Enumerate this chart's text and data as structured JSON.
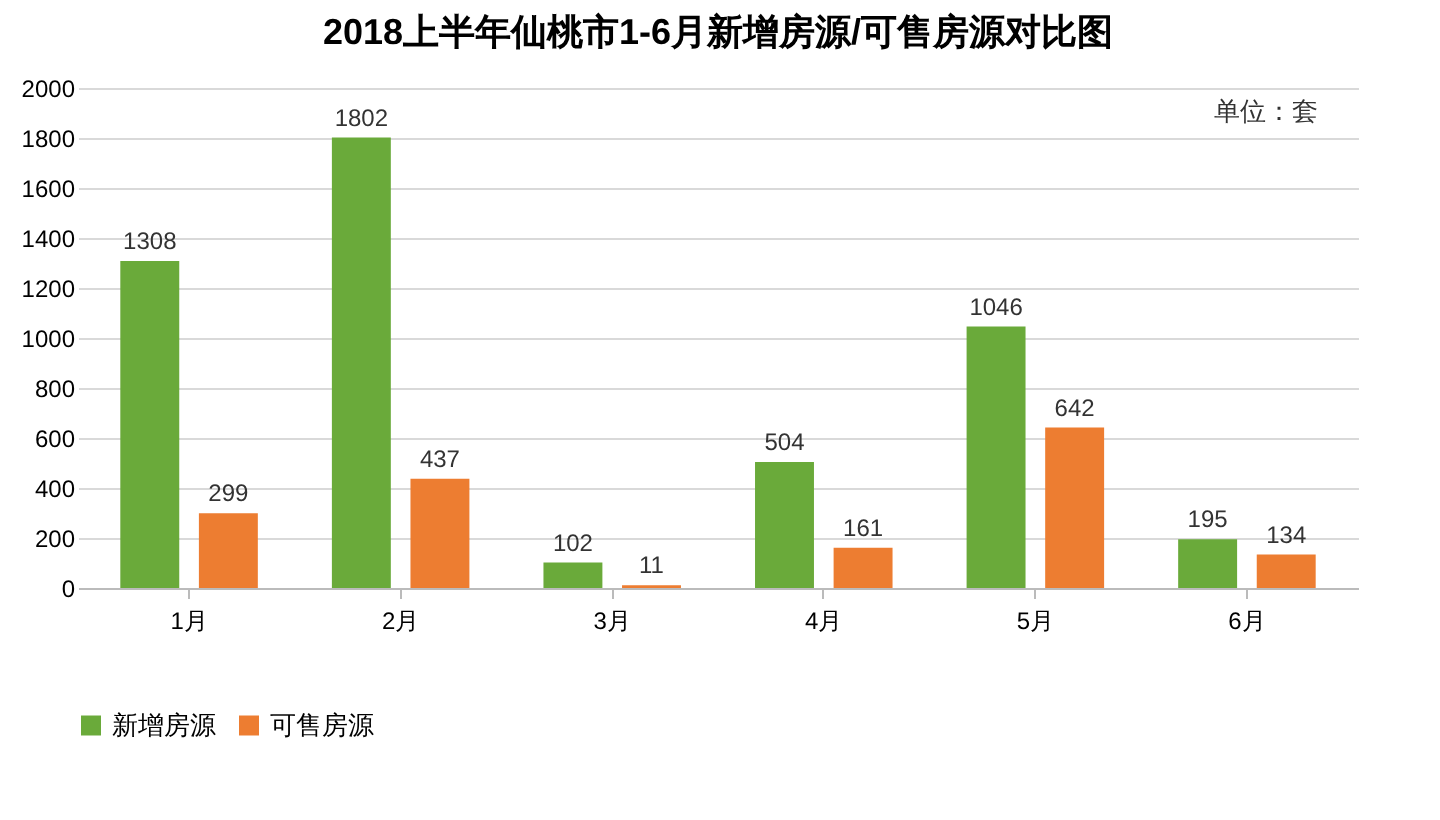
{
  "chart_data": {
    "type": "bar",
    "title": "2018上半年仙桃市1-6月新增房源/可售房源对比图",
    "annotations": [
      "单位：套"
    ],
    "categories": [
      "1月",
      "2月",
      "3月",
      "4月",
      "5月",
      "6月"
    ],
    "series": [
      {
        "name": "新增房源",
        "color": "#6aaa3a",
        "values": [
          1308,
          1802,
          102,
          504,
          1046,
          195
        ]
      },
      {
        "name": "可售房源",
        "color": "#ed7d31",
        "values": [
          299,
          437,
          11,
          161,
          642,
          134
        ]
      }
    ],
    "ylim": [
      0,
      2000
    ],
    "yticks": [
      0,
      200,
      400,
      600,
      800,
      1000,
      1200,
      1400,
      1600,
      1800,
      2000
    ],
    "grid": "y",
    "legend": "bottom",
    "data_labels": true
  }
}
